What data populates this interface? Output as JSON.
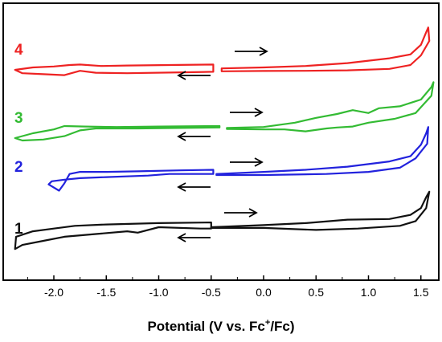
{
  "chart_data": {
    "type": "line",
    "title": "",
    "xlabel": {
      "main": "Potential (V vs. Fc",
      "sup": "+",
      "tail": "/Fc)"
    },
    "ylabel": "",
    "xlim": [
      -2.4,
      1.65
    ],
    "x_reversed": false,
    "x_ticks": [
      "-2.0",
      "-1.5",
      "-1.0",
      "-0.5",
      "0.0",
      "0.5",
      "1.0",
      "1.5"
    ],
    "x_tick_values": [
      -2.0,
      -1.5,
      -1.0,
      -0.5,
      0.0,
      0.5,
      1.0,
      1.5
    ],
    "y_ticks_shown": false,
    "grid": false,
    "legend": "none",
    "series": [
      {
        "name": "4",
        "color": "#ee2222",
        "segments": [
          [
            [
              -0.48,
              0.55
            ],
            [
              -0.9,
              0.5
            ],
            [
              -1.3,
              0.45
            ],
            [
              -1.55,
              0.4
            ],
            [
              -1.75,
              0.55
            ],
            [
              -1.85,
              0.5
            ],
            [
              -2.0,
              0.35
            ],
            [
              -2.2,
              0.25
            ],
            [
              -2.37,
              0.0
            ],
            [
              -2.3,
              -0.35
            ],
            [
              -2.1,
              -0.45
            ],
            [
              -1.9,
              -0.55
            ],
            [
              -1.75,
              -0.1
            ],
            [
              -1.6,
              -0.3
            ],
            [
              -1.3,
              -0.35
            ],
            [
              -0.9,
              -0.28
            ],
            [
              -0.48,
              -0.2
            ]
          ],
          [
            [
              -0.4,
              0.15
            ],
            [
              0.0,
              0.25
            ],
            [
              0.4,
              0.4
            ],
            [
              0.8,
              0.7
            ],
            [
              1.2,
              1.2
            ],
            [
              1.4,
              1.6
            ],
            [
              1.5,
              2.6
            ],
            [
              1.55,
              3.9
            ],
            [
              1.57,
              4.4
            ],
            [
              1.58,
              3.0
            ],
            [
              1.5,
              1.5
            ],
            [
              1.4,
              0.5
            ],
            [
              1.2,
              0.1
            ],
            [
              0.8,
              -0.05
            ],
            [
              0.4,
              -0.1
            ],
            [
              0.0,
              -0.12
            ],
            [
              -0.4,
              -0.15
            ]
          ]
        ]
      },
      {
        "name": "3",
        "color": "#33bb33",
        "segments": [
          [
            [
              -0.42,
              0.25
            ],
            [
              -1.0,
              0.2
            ],
            [
              -1.4,
              0.15
            ],
            [
              -1.7,
              0.2
            ],
            [
              -1.9,
              0.25
            ],
            [
              -2.0,
              -0.1
            ],
            [
              -2.2,
              -0.5
            ],
            [
              -2.37,
              -1.0
            ],
            [
              -2.3,
              -1.25
            ],
            [
              -2.1,
              -1.15
            ],
            [
              -1.9,
              -0.8
            ],
            [
              -1.75,
              -0.2
            ],
            [
              -1.6,
              0.0
            ],
            [
              -1.2,
              0.0
            ],
            [
              -0.8,
              0.05
            ],
            [
              -0.42,
              0.1
            ]
          ],
          [
            [
              -0.35,
              0.05
            ],
            [
              0.0,
              0.15
            ],
            [
              0.3,
              0.6
            ],
            [
              0.5,
              1.1
            ],
            [
              0.7,
              1.5
            ],
            [
              0.85,
              1.9
            ],
            [
              1.0,
              1.6
            ],
            [
              1.1,
              2.1
            ],
            [
              1.3,
              2.3
            ],
            [
              1.5,
              3.0
            ],
            [
              1.6,
              4.3
            ],
            [
              1.62,
              4.8
            ],
            [
              1.6,
              3.4
            ],
            [
              1.45,
              1.6
            ],
            [
              1.25,
              1.0
            ],
            [
              1.0,
              0.6
            ],
            [
              0.85,
              0.2
            ],
            [
              0.7,
              0.1
            ],
            [
              0.6,
              0.0
            ],
            [
              0.4,
              -0.3
            ],
            [
              0.2,
              -0.1
            ],
            [
              0.0,
              -0.1
            ],
            [
              -0.35,
              -0.05
            ]
          ]
        ]
      },
      {
        "name": "2",
        "color": "#2222dd",
        "segments": [
          [
            [
              -0.48,
              0.5
            ],
            [
              -0.8,
              0.45
            ],
            [
              -1.2,
              0.35
            ],
            [
              -1.5,
              0.3
            ],
            [
              -1.75,
              0.3
            ],
            [
              -1.85,
              0.1
            ],
            [
              -1.9,
              -0.8
            ],
            [
              -1.95,
              -1.5
            ],
            [
              -2.05,
              -0.9
            ],
            [
              -2.02,
              -0.6
            ],
            [
              -1.9,
              -0.45
            ],
            [
              -1.75,
              -0.3
            ],
            [
              -1.5,
              -0.2
            ],
            [
              -1.1,
              -0.05
            ],
            [
              -0.9,
              0.1
            ],
            [
              -0.48,
              0.1
            ]
          ],
          [
            [
              -0.45,
              0.1
            ],
            [
              0.0,
              0.3
            ],
            [
              0.4,
              0.5
            ],
            [
              0.8,
              0.8
            ],
            [
              1.2,
              1.3
            ],
            [
              1.4,
              1.8
            ],
            [
              1.5,
              2.9
            ],
            [
              1.55,
              4.0
            ],
            [
              1.57,
              4.6
            ],
            [
              1.56,
              3.0
            ],
            [
              1.45,
              1.6
            ],
            [
              1.3,
              0.7
            ],
            [
              1.0,
              0.3
            ],
            [
              0.6,
              0.1
            ],
            [
              0.0,
              0.0
            ],
            [
              -0.45,
              0.0
            ]
          ]
        ]
      },
      {
        "name": "1",
        "color": "#111111",
        "segments": [
          [
            [
              -0.5,
              0.35
            ],
            [
              -1.0,
              0.3
            ],
            [
              -1.5,
              0.2
            ],
            [
              -1.8,
              0.1
            ],
            [
              -2.0,
              -0.1
            ],
            [
              -2.2,
              -0.3
            ],
            [
              -2.36,
              -0.7
            ],
            [
              -2.37,
              -1.6
            ],
            [
              -2.3,
              -1.3
            ],
            [
              -2.1,
              -1.0
            ],
            [
              -1.9,
              -0.7
            ],
            [
              -1.6,
              -0.5
            ],
            [
              -1.3,
              -0.3
            ],
            [
              -1.2,
              -0.4
            ],
            [
              -1.0,
              0.0
            ],
            [
              -0.6,
              -0.1
            ],
            [
              -0.5,
              -0.1
            ]
          ],
          [
            [
              -0.5,
              0.0
            ],
            [
              0.0,
              0.15
            ],
            [
              0.4,
              0.3
            ],
            [
              0.8,
              0.55
            ],
            [
              1.2,
              0.6
            ],
            [
              1.4,
              0.9
            ],
            [
              1.5,
              1.4
            ],
            [
              1.55,
              2.2
            ],
            [
              1.58,
              2.6
            ],
            [
              1.55,
              1.4
            ],
            [
              1.45,
              0.45
            ],
            [
              1.3,
              0.1
            ],
            [
              0.9,
              -0.1
            ],
            [
              0.5,
              -0.2
            ],
            [
              0.0,
              -0.05
            ],
            [
              -0.5,
              -0.05
            ]
          ]
        ]
      }
    ],
    "arrows": [
      {
        "trace": "4",
        "direction": "right"
      },
      {
        "trace": "4",
        "direction": "left"
      },
      {
        "trace": "3",
        "direction": "right"
      },
      {
        "trace": "3",
        "direction": "left"
      },
      {
        "trace": "2",
        "direction": "right"
      },
      {
        "trace": "2",
        "direction": "left"
      },
      {
        "trace": "1",
        "direction": "right"
      },
      {
        "trace": "1",
        "direction": "left"
      }
    ]
  }
}
